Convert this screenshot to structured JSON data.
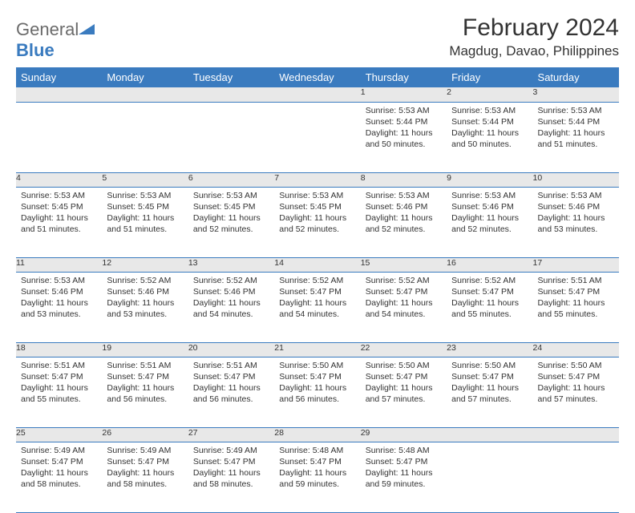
{
  "logo": {
    "word1": "General",
    "word2": "Blue"
  },
  "title": "February 2024",
  "location": "Magdug, Davao, Philippines",
  "header_bg": "#3a7bbf",
  "header_text": "#ffffff",
  "daynum_bg": "#e8e8e8",
  "row_border": "#3a7bbf",
  "days": [
    "Sunday",
    "Monday",
    "Tuesday",
    "Wednesday",
    "Thursday",
    "Friday",
    "Saturday"
  ],
  "weeks": [
    [
      null,
      null,
      null,
      null,
      {
        "n": "1",
        "sr": "Sunrise: 5:53 AM",
        "ss": "Sunset: 5:44 PM",
        "dl1": "Daylight: 11 hours",
        "dl2": "and 50 minutes."
      },
      {
        "n": "2",
        "sr": "Sunrise: 5:53 AM",
        "ss": "Sunset: 5:44 PM",
        "dl1": "Daylight: 11 hours",
        "dl2": "and 50 minutes."
      },
      {
        "n": "3",
        "sr": "Sunrise: 5:53 AM",
        "ss": "Sunset: 5:44 PM",
        "dl1": "Daylight: 11 hours",
        "dl2": "and 51 minutes."
      }
    ],
    [
      {
        "n": "4",
        "sr": "Sunrise: 5:53 AM",
        "ss": "Sunset: 5:45 PM",
        "dl1": "Daylight: 11 hours",
        "dl2": "and 51 minutes."
      },
      {
        "n": "5",
        "sr": "Sunrise: 5:53 AM",
        "ss": "Sunset: 5:45 PM",
        "dl1": "Daylight: 11 hours",
        "dl2": "and 51 minutes."
      },
      {
        "n": "6",
        "sr": "Sunrise: 5:53 AM",
        "ss": "Sunset: 5:45 PM",
        "dl1": "Daylight: 11 hours",
        "dl2": "and 52 minutes."
      },
      {
        "n": "7",
        "sr": "Sunrise: 5:53 AM",
        "ss": "Sunset: 5:45 PM",
        "dl1": "Daylight: 11 hours",
        "dl2": "and 52 minutes."
      },
      {
        "n": "8",
        "sr": "Sunrise: 5:53 AM",
        "ss": "Sunset: 5:46 PM",
        "dl1": "Daylight: 11 hours",
        "dl2": "and 52 minutes."
      },
      {
        "n": "9",
        "sr": "Sunrise: 5:53 AM",
        "ss": "Sunset: 5:46 PM",
        "dl1": "Daylight: 11 hours",
        "dl2": "and 52 minutes."
      },
      {
        "n": "10",
        "sr": "Sunrise: 5:53 AM",
        "ss": "Sunset: 5:46 PM",
        "dl1": "Daylight: 11 hours",
        "dl2": "and 53 minutes."
      }
    ],
    [
      {
        "n": "11",
        "sr": "Sunrise: 5:53 AM",
        "ss": "Sunset: 5:46 PM",
        "dl1": "Daylight: 11 hours",
        "dl2": "and 53 minutes."
      },
      {
        "n": "12",
        "sr": "Sunrise: 5:52 AM",
        "ss": "Sunset: 5:46 PM",
        "dl1": "Daylight: 11 hours",
        "dl2": "and 53 minutes."
      },
      {
        "n": "13",
        "sr": "Sunrise: 5:52 AM",
        "ss": "Sunset: 5:46 PM",
        "dl1": "Daylight: 11 hours",
        "dl2": "and 54 minutes."
      },
      {
        "n": "14",
        "sr": "Sunrise: 5:52 AM",
        "ss": "Sunset: 5:47 PM",
        "dl1": "Daylight: 11 hours",
        "dl2": "and 54 minutes."
      },
      {
        "n": "15",
        "sr": "Sunrise: 5:52 AM",
        "ss": "Sunset: 5:47 PM",
        "dl1": "Daylight: 11 hours",
        "dl2": "and 54 minutes."
      },
      {
        "n": "16",
        "sr": "Sunrise: 5:52 AM",
        "ss": "Sunset: 5:47 PM",
        "dl1": "Daylight: 11 hours",
        "dl2": "and 55 minutes."
      },
      {
        "n": "17",
        "sr": "Sunrise: 5:51 AM",
        "ss": "Sunset: 5:47 PM",
        "dl1": "Daylight: 11 hours",
        "dl2": "and 55 minutes."
      }
    ],
    [
      {
        "n": "18",
        "sr": "Sunrise: 5:51 AM",
        "ss": "Sunset: 5:47 PM",
        "dl1": "Daylight: 11 hours",
        "dl2": "and 55 minutes."
      },
      {
        "n": "19",
        "sr": "Sunrise: 5:51 AM",
        "ss": "Sunset: 5:47 PM",
        "dl1": "Daylight: 11 hours",
        "dl2": "and 56 minutes."
      },
      {
        "n": "20",
        "sr": "Sunrise: 5:51 AM",
        "ss": "Sunset: 5:47 PM",
        "dl1": "Daylight: 11 hours",
        "dl2": "and 56 minutes."
      },
      {
        "n": "21",
        "sr": "Sunrise: 5:50 AM",
        "ss": "Sunset: 5:47 PM",
        "dl1": "Daylight: 11 hours",
        "dl2": "and 56 minutes."
      },
      {
        "n": "22",
        "sr": "Sunrise: 5:50 AM",
        "ss": "Sunset: 5:47 PM",
        "dl1": "Daylight: 11 hours",
        "dl2": "and 57 minutes."
      },
      {
        "n": "23",
        "sr": "Sunrise: 5:50 AM",
        "ss": "Sunset: 5:47 PM",
        "dl1": "Daylight: 11 hours",
        "dl2": "and 57 minutes."
      },
      {
        "n": "24",
        "sr": "Sunrise: 5:50 AM",
        "ss": "Sunset: 5:47 PM",
        "dl1": "Daylight: 11 hours",
        "dl2": "and 57 minutes."
      }
    ],
    [
      {
        "n": "25",
        "sr": "Sunrise: 5:49 AM",
        "ss": "Sunset: 5:47 PM",
        "dl1": "Daylight: 11 hours",
        "dl2": "and 58 minutes."
      },
      {
        "n": "26",
        "sr": "Sunrise: 5:49 AM",
        "ss": "Sunset: 5:47 PM",
        "dl1": "Daylight: 11 hours",
        "dl2": "and 58 minutes."
      },
      {
        "n": "27",
        "sr": "Sunrise: 5:49 AM",
        "ss": "Sunset: 5:47 PM",
        "dl1": "Daylight: 11 hours",
        "dl2": "and 58 minutes."
      },
      {
        "n": "28",
        "sr": "Sunrise: 5:48 AM",
        "ss": "Sunset: 5:47 PM",
        "dl1": "Daylight: 11 hours",
        "dl2": "and 59 minutes."
      },
      {
        "n": "29",
        "sr": "Sunrise: 5:48 AM",
        "ss": "Sunset: 5:47 PM",
        "dl1": "Daylight: 11 hours",
        "dl2": "and 59 minutes."
      },
      null,
      null
    ]
  ]
}
